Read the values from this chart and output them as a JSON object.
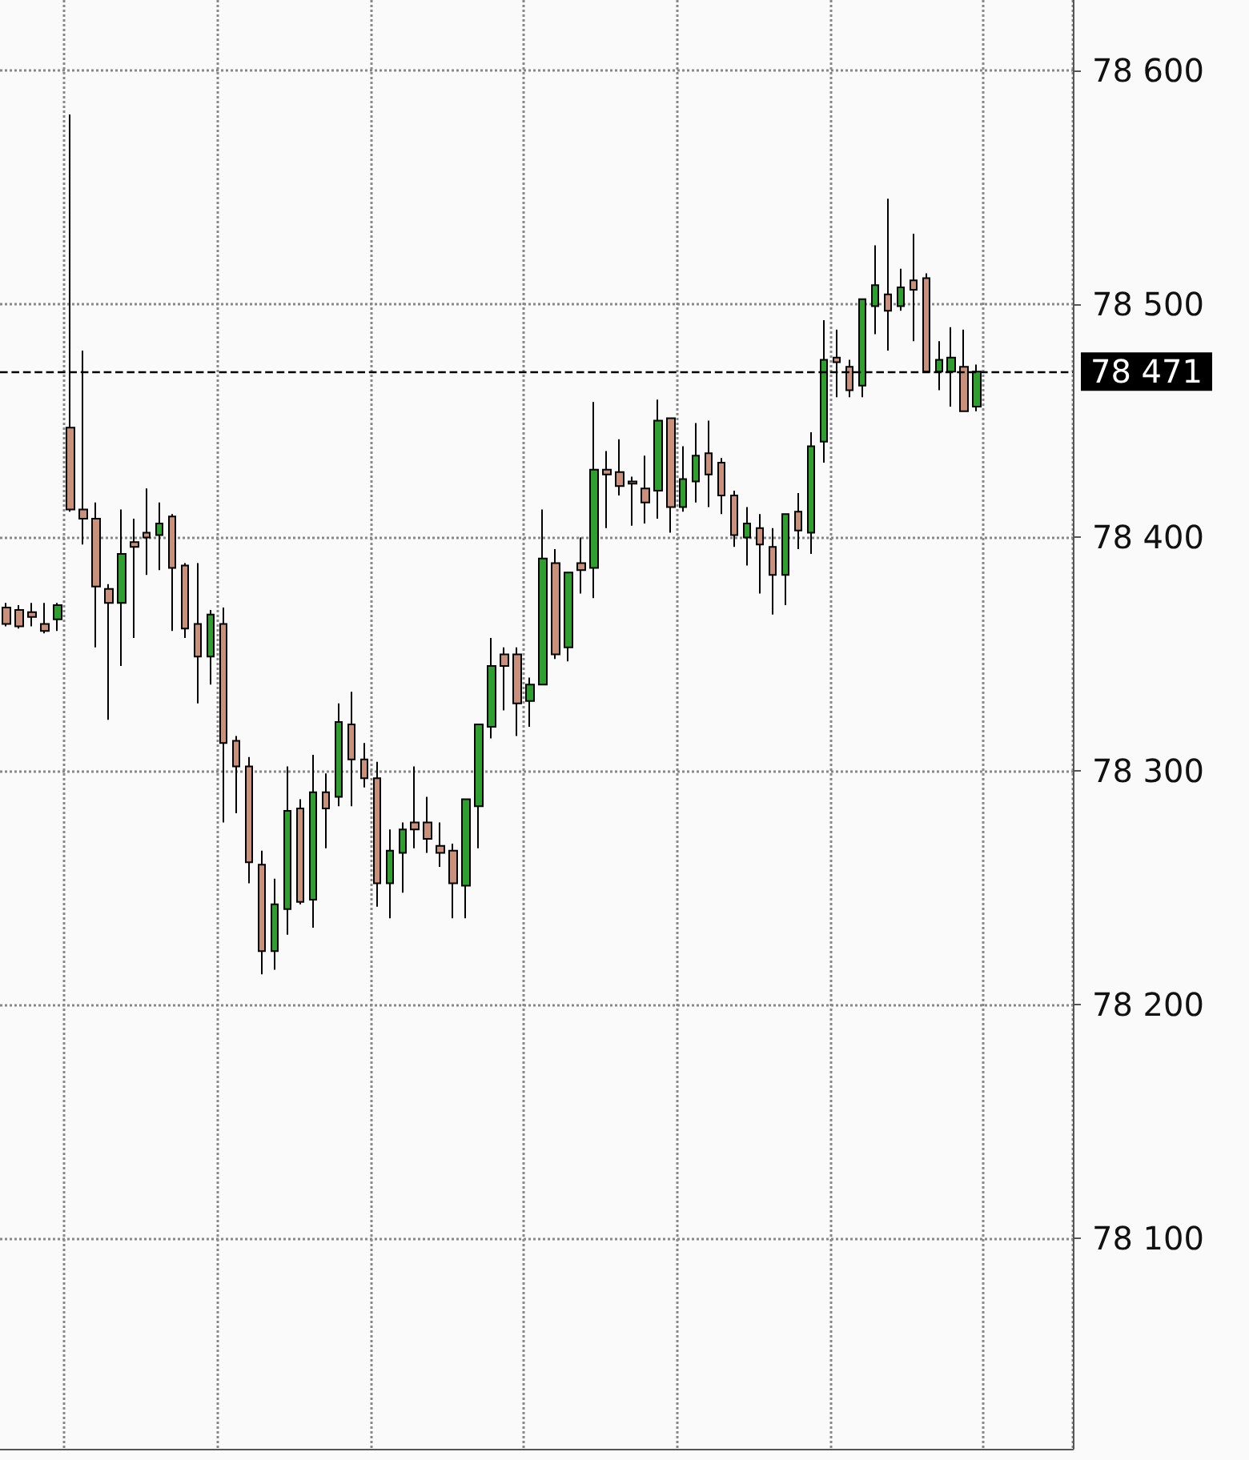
{
  "chart_data": {
    "type": "candlestick",
    "categories": [
      null,
      null,
      null,
      null,
      null,
      null,
      null,
      null,
      null,
      null,
      null,
      null,
      null,
      null,
      null,
      null,
      null,
      null,
      null,
      null,
      null,
      null,
      null,
      null,
      null,
      null,
      null,
      null,
      null,
      null,
      null,
      null,
      null,
      null,
      null,
      null,
      null,
      null,
      null,
      null,
      null,
      null,
      null,
      null,
      null,
      null,
      null,
      null,
      null,
      null,
      null,
      null,
      null,
      null,
      null,
      null,
      null,
      null,
      null,
      null,
      null,
      null,
      null,
      null,
      null,
      null,
      null,
      null,
      null,
      null,
      null,
      null,
      null,
      null,
      null,
      null,
      null,
      null,
      null,
      null,
      null,
      null,
      null,
      null
    ],
    "ohlc": [
      [
        78370,
        78372,
        78362,
        78363
      ],
      [
        78369,
        78371,
        78361,
        78362
      ],
      [
        78368,
        78372,
        78362,
        78366
      ],
      [
        78363,
        78372,
        78359,
        78360
      ],
      [
        78365,
        78372,
        78360,
        78371
      ],
      [
        78447,
        78581,
        78411,
        78412
      ],
      [
        78412,
        78480,
        78397,
        78408
      ],
      [
        78408,
        78415,
        78353,
        78379
      ],
      [
        78378,
        78380,
        78322,
        78372
      ],
      [
        78372,
        78412,
        78345,
        78393
      ],
      [
        78398,
        78408,
        78357,
        78396
      ],
      [
        78402,
        78421,
        78384,
        78400
      ],
      [
        78401,
        78415,
        78386,
        78406
      ],
      [
        78409,
        78410,
        78360,
        78387
      ],
      [
        78388,
        78389,
        78357,
        78361
      ],
      [
        78363,
        78389,
        78329,
        78349
      ],
      [
        78349,
        78369,
        78337,
        78367
      ],
      [
        78363,
        78370,
        78278,
        78312
      ],
      [
        78313,
        78315,
        78282,
        78302
      ],
      [
        78302,
        78306,
        78252,
        78261
      ],
      [
        78260,
        78266,
        78213,
        78223
      ],
      [
        78223,
        78254,
        78215,
        78243
      ],
      [
        78241,
        78302,
        78230,
        78283
      ],
      [
        78284,
        78288,
        78243,
        78244
      ],
      [
        78245,
        78307,
        78233,
        78291
      ],
      [
        78291,
        78299,
        78267,
        78284
      ],
      [
        78289,
        78329,
        78285,
        78321
      ],
      [
        78320,
        78334,
        78285,
        78305
      ],
      [
        78305,
        78312,
        78293,
        78297
      ],
      [
        78297,
        78304,
        78242,
        78252
      ],
      [
        78252,
        78275,
        78237,
        78266
      ],
      [
        78265,
        78278,
        78248,
        78275
      ],
      [
        78278,
        78302,
        78267,
        78275
      ],
      [
        78278,
        78289,
        78265,
        78271
      ],
      [
        78268,
        78278,
        78259,
        78265
      ],
      [
        78266,
        78269,
        78237,
        78252
      ],
      [
        78251,
        78288,
        78237,
        78288
      ],
      [
        78285,
        78320,
        78267,
        78320
      ],
      [
        78319,
        78357,
        78314,
        78345
      ],
      [
        78350,
        78353,
        78326,
        78345
      ],
      [
        78350,
        78353,
        78315,
        78329
      ],
      [
        78330,
        78340,
        78319,
        78337
      ],
      [
        78337,
        78412,
        78337,
        78391
      ],
      [
        78389,
        78395,
        78348,
        78350
      ],
      [
        78353,
        78385,
        78347,
        78385
      ],
      [
        78389,
        78400,
        78376,
        78386
      ],
      [
        78387,
        78458,
        78374,
        78429
      ],
      [
        78429,
        78437,
        78404,
        78427
      ],
      [
        78428,
        78442,
        78418,
        78422
      ],
      [
        78424,
        78426,
        78405,
        78423
      ],
      [
        78421,
        78435,
        78406,
        78415
      ],
      [
        78420,
        78459,
        78408,
        78450
      ],
      [
        78451,
        78451,
        78402,
        78413
      ],
      [
        78413,
        78439,
        78411,
        78425
      ],
      [
        78424,
        78449,
        78415,
        78435
      ],
      [
        78436,
        78450,
        78413,
        78427
      ],
      [
        78432,
        78434,
        78410,
        78418
      ],
      [
        78418,
        78420,
        78396,
        78401
      ],
      [
        78400,
        78413,
        78388,
        78406
      ],
      [
        78404,
        78410,
        78376,
        78397
      ],
      [
        78396,
        78404,
        78367,
        78384
      ],
      [
        78384,
        78410,
        78371,
        78410
      ],
      [
        78411,
        78419,
        78395,
        78403
      ],
      [
        78402,
        78445,
        78393,
        78439
      ],
      [
        78441,
        78493,
        78432,
        78476
      ],
      [
        78477,
        78489,
        78460,
        78475
      ],
      [
        78473,
        78476,
        78460,
        78463
      ],
      [
        78465,
        78502,
        78460,
        78502
      ],
      [
        78499,
        78525,
        78487,
        78508
      ],
      [
        78504,
        78545,
        78480,
        78497
      ],
      [
        78499,
        78515,
        78497,
        78507
      ],
      [
        78510,
        78530,
        78484,
        78506
      ],
      [
        78511,
        78513,
        78471,
        78471
      ],
      [
        78471,
        78484,
        78463,
        78476
      ],
      [
        78471,
        78490,
        78456,
        78477
      ],
      [
        78473,
        78489,
        78454,
        78454
      ],
      [
        78456,
        78474,
        78454,
        78471
      ],
      null,
      null,
      null,
      null,
      null,
      null,
      null
    ],
    "colors": [
      "#c9907c",
      "#c9907c",
      "#c9907c",
      "#c9907c",
      "#2e9e2e",
      "#c9907c",
      "#c9907c",
      "#c9907c",
      "#c9907c",
      "#2e9e2e",
      "#c9907c",
      "#c9907c",
      "#2e9e2e",
      "#c9907c",
      "#c9907c",
      "#c9907c",
      "#2e9e2e",
      "#c9907c",
      "#c9907c",
      "#c9907c",
      "#c9907c",
      "#2e9e2e",
      "#2e9e2e",
      "#c9907c",
      "#2e9e2e",
      "#c9907c",
      "#2e9e2e",
      "#c9907c",
      "#c9907c",
      "#c9907c",
      "#2e9e2e",
      "#2e9e2e",
      "#c9907c",
      "#c9907c",
      "#c9907c",
      "#c9907c",
      "#2e9e2e",
      "#2e9e2e",
      "#2e9e2e",
      "#c9907c",
      "#c9907c",
      "#2e9e2e",
      "#2e9e2e",
      "#c9907c",
      "#2e9e2e",
      "#c9907c",
      "#2e9e2e",
      "#c9907c",
      "#c9907c",
      "#c9907c",
      "#c9907c",
      "#2e9e2e",
      "#c9907c",
      "#2e9e2e",
      "#2e9e2e",
      "#c9907c",
      "#c9907c",
      "#c9907c",
      "#2e9e2e",
      "#c9907c",
      "#c9907c",
      "#2e9e2e",
      "#c9907c",
      "#2e9e2e",
      "#2e9e2e",
      "#c9907c",
      "#c9907c",
      "#2e9e2e",
      "#2e9e2e",
      "#c9907c",
      "#2e9e2e",
      "#c9907c",
      "#c9907c",
      "#2e9e2e",
      "#2e9e2e",
      "#c9907c",
      "#2e9e2e",
      null,
      null,
      null,
      null,
      null,
      null,
      null
    ],
    "ylim": [
      78010,
      78630
    ],
    "yticks": [
      {
        "value": 78100,
        "label": "78 100"
      },
      {
        "value": 78200,
        "label": "78 200"
      },
      {
        "value": 78300,
        "label": "78 300"
      },
      {
        "value": 78400,
        "label": "78 400"
      },
      {
        "value": 78500,
        "label": "78 500"
      },
      {
        "value": 78600,
        "label": "78 600"
      }
    ],
    "ref_lines": [
      {
        "axis": "y",
        "value": 78471,
        "label": "78 471",
        "line_style": "dashed",
        "color": "#000000"
      }
    ],
    "grid": true,
    "tick_labels": "y"
  }
}
